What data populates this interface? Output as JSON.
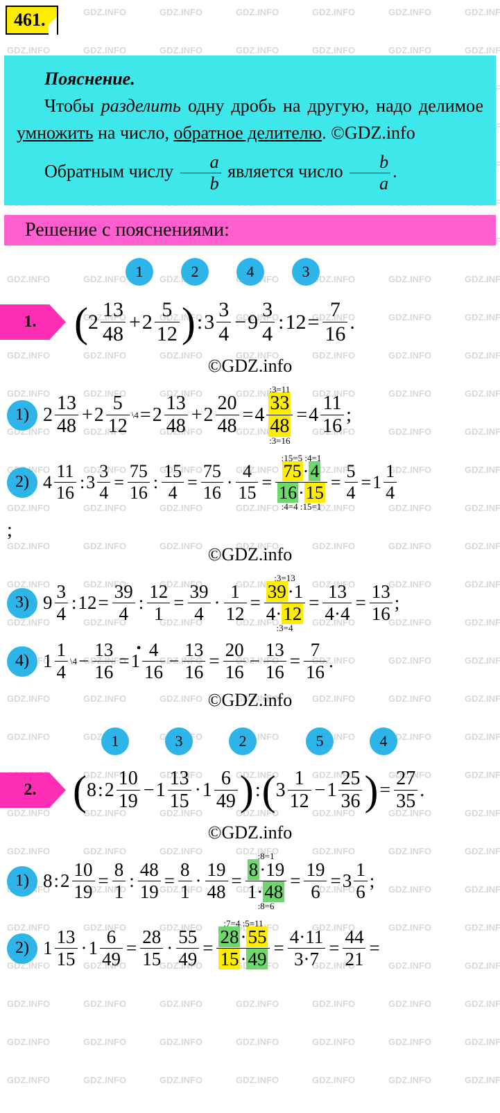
{
  "badge": "461.",
  "explain": {
    "title": "Пояснение.",
    "line1_a": "Чтобы ",
    "line1_b": "разделить",
    "line1_c": " одну дробь на другую, надо делимое ",
    "line1_d": "умножить",
    "line1_e": " на число, ",
    "line1_f": "обратное делителю",
    "line1_g": ". ©GDZ.info",
    "line2_a": "Обратным числу ",
    "line2_b": " является число "
  },
  "frac_ab": {
    "n": "a",
    "d": "b"
  },
  "frac_ba": {
    "n": "b",
    "d": "a"
  },
  "pink_title": "Решение с пояснениями:",
  "copyright": "©GDZ.info",
  "p1": {
    "label": "1.",
    "steps": [
      "1",
      "2",
      "4",
      "3"
    ],
    "expr": {
      "t1a": "2",
      "f1n": "13",
      "f1d": "48",
      "plus": "+",
      "t2a": "2",
      "f2n": "5",
      "f2d": "12",
      "col": ":",
      "t3a": "3",
      "f3n": "3",
      "f3d": "4",
      "minus": "−",
      "t4a": "9",
      "f4n": "3",
      "f4d": "4",
      "col2": ":",
      "t5": "12",
      "eq": "=",
      "rn": "7",
      "rd": "16",
      "dot": "."
    }
  },
  "s1_1": {
    "label": "1)",
    "a1": "2",
    "n1": "13",
    "d1": "48",
    "plus": "+",
    "a2": "2",
    "n2": "5",
    "d2": "12",
    "sup4": "\\4",
    "eq1": "=",
    "a3": "2",
    "n3": "13",
    "d3": "48",
    "plus2": "+",
    "a4": "2",
    "n4": "20",
    "d4": "48",
    "eq2": "=",
    "a5": "4",
    "n5": "33",
    "d5": "48",
    "over": ":3=11",
    "under": ":3=16",
    "eq3": "=",
    "a6": "4",
    "n6": "11",
    "d6": "16",
    "semi": ";"
  },
  "s1_2": {
    "label": "2)",
    "a1": "4",
    "n1": "11",
    "d1": "16",
    "col": ":",
    "a2": "3",
    "n2": "3",
    "d2": "4",
    "eq1": "=",
    "n3": "75",
    "d3": "16",
    "col2": ":",
    "n4": "15",
    "d4": "4",
    "eq2": "=",
    "n5": "75",
    "d5": "16",
    "dot": "·",
    "n6": "4",
    "d6": "15",
    "eq3": "=",
    "hn1": "75",
    "hn2": "4",
    "hd1": "16",
    "hd2": "15",
    "o1": ":15=5",
    "o2": ":4=1",
    "u1": ":4=4",
    "u2": ":15=1",
    "eq4": "=",
    "rn": "5",
    "rd": "4",
    "eq5": "=",
    "ra": "1",
    "rn2": "1",
    "rd2": "4"
  },
  "s1_3": {
    "label": "3)",
    "a1": "9",
    "n1": "3",
    "d1": "4",
    "col": ":",
    "t12": "12",
    "eq1": "=",
    "n2": "39",
    "d2": "4",
    "col2": ":",
    "n3": "12",
    "d3": "1",
    "eq2": "=",
    "n4": "39",
    "d4": "4",
    "dot": "·",
    "n5": "1",
    "d5": "12",
    "eq3": "=",
    "hn": "39",
    "h1": "·1",
    "hd": "4·",
    "h12": "12",
    "o1": ":3=13",
    "u1": ":3=4",
    "eq4": "=",
    "rn": "13",
    "rd": "4·4",
    "eq5": "=",
    "rn2": "13",
    "rd2": "16",
    "semi": ";"
  },
  "s1_4": {
    "label": "4)",
    "a1": "1",
    "n1": "1",
    "d1": "4",
    "sup4": "\\4",
    "minus": "−",
    "n2": "13",
    "d2": "16",
    "eq1": "=",
    "a2": "1",
    "dot": "•",
    "n3": "4",
    "d3": "16",
    "minus2": "−",
    "n4": "13",
    "d4": "16",
    "eq2": "=",
    "n5": "20",
    "d5": "16",
    "minus3": "−",
    "n6": "13",
    "d6": "16",
    "eq3": "=",
    "rn": "7",
    "rd": "16",
    "dot2": "."
  },
  "p2": {
    "label": "2.",
    "steps": [
      "1",
      "3",
      "2",
      "5",
      "4"
    ],
    "t8": "8",
    "col": ":",
    "a1": "2",
    "n1": "10",
    "d1": "19",
    "minus": "−",
    "a2": "1",
    "n2": "13",
    "d2": "15",
    "dot": "·",
    "a3": "1",
    "n3": "6",
    "d3": "49",
    "col2": ":",
    "a4": "3",
    "n4": "1",
    "d4": "12",
    "minus2": "−",
    "a5": "1",
    "n5": "25",
    "d5": "36",
    "eq": "=",
    "rn": "27",
    "rd": "35",
    "dot2": "."
  },
  "s2_1": {
    "label": "1)",
    "t8": "8",
    "col": ":",
    "a1": "2",
    "n1": "10",
    "d1": "19",
    "eq1": "=",
    "n2": "8",
    "d2": "1",
    "col2": ":",
    "n3": "48",
    "d3": "19",
    "eq2": "=",
    "n4": "8",
    "d4": "1",
    "dot": "·",
    "n5": "19",
    "d5": "48",
    "eq3": "=",
    "hn": "8",
    "h19": "·19",
    "hd": "1·",
    "h48": "48",
    "o1": ":8=1",
    "u1": ":8=6",
    "eq4": "=",
    "rn": "19",
    "rd": "6",
    "eq5": "=",
    "ra": "3",
    "rn2": "1",
    "rd2": "6",
    "semi": ";"
  },
  "s2_2": {
    "label": "2)",
    "a1": "1",
    "n1": "13",
    "d1": "15",
    "dot": "·",
    "a2": "1",
    "n2": "6",
    "d2": "49",
    "eq1": "=",
    "n3": "28",
    "d3": "15",
    "dot2": "·",
    "n4": "55",
    "d4": "49",
    "eq2": "=",
    "hn1": "28",
    "hn2": "55",
    "hd1": "15",
    "hd2": "49",
    "o1": ":7=4",
    "o2": ":5=11",
    "eq3": "=",
    "rn": "4·11",
    "rd": "3·7",
    "eq4": "=",
    "rn2": "44",
    "rd2": "21",
    "eq5": "="
  },
  "semicolon": ";",
  "watermark_text": "GDZ.INFO"
}
